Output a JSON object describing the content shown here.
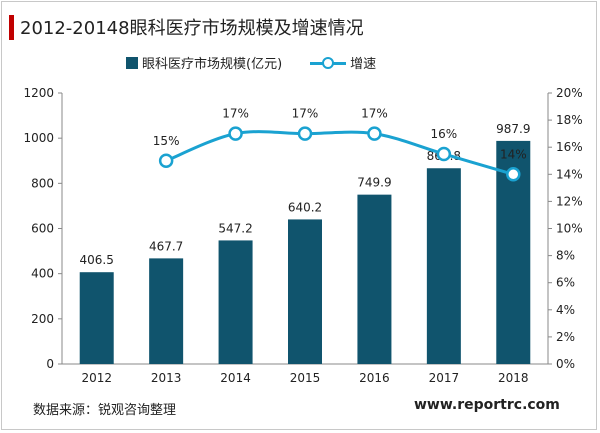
{
  "title": "2012-20148眼科医疗市场规模及增速情况",
  "source": "数据来源：锐观咨询整理",
  "watermark": "www.reportrc.com",
  "colors": {
    "bar": "#10546d",
    "line": "#1aa2d1",
    "title_accent": "#c00000"
  },
  "chart_data": {
    "type": "bar",
    "categories": [
      "2012",
      "2013",
      "2014",
      "2015",
      "2016",
      "2017",
      "2018"
    ],
    "series": [
      {
        "name": "眼科医疗市场规模(亿元)",
        "type": "bar",
        "axis": "left",
        "values": [
          406.5,
          467.7,
          547.2,
          640.2,
          749.9,
          866.8,
          987.9
        ],
        "labels": [
          "406.5",
          "467.7",
          "547.2",
          "640.2",
          "749.9",
          "866.8",
          "987.9"
        ]
      },
      {
        "name": "增速",
        "type": "line",
        "axis": "right",
        "values": [
          null,
          15,
          17,
          17,
          17,
          15.5,
          14
        ],
        "labels": [
          "",
          "15%",
          "17%",
          "17%",
          "17%",
          "16%",
          "14%"
        ]
      }
    ],
    "y_left": {
      "range": [
        0,
        1200
      ],
      "ticks": [
        "0",
        "200",
        "400",
        "600",
        "800",
        "1000",
        "1200"
      ]
    },
    "y_right": {
      "range": [
        0,
        20
      ],
      "ticks": [
        "0%",
        "2%",
        "4%",
        "6%",
        "8%",
        "10%",
        "12%",
        "14%",
        "16%",
        "18%",
        "20%"
      ]
    },
    "grid": false,
    "legend": "top"
  }
}
